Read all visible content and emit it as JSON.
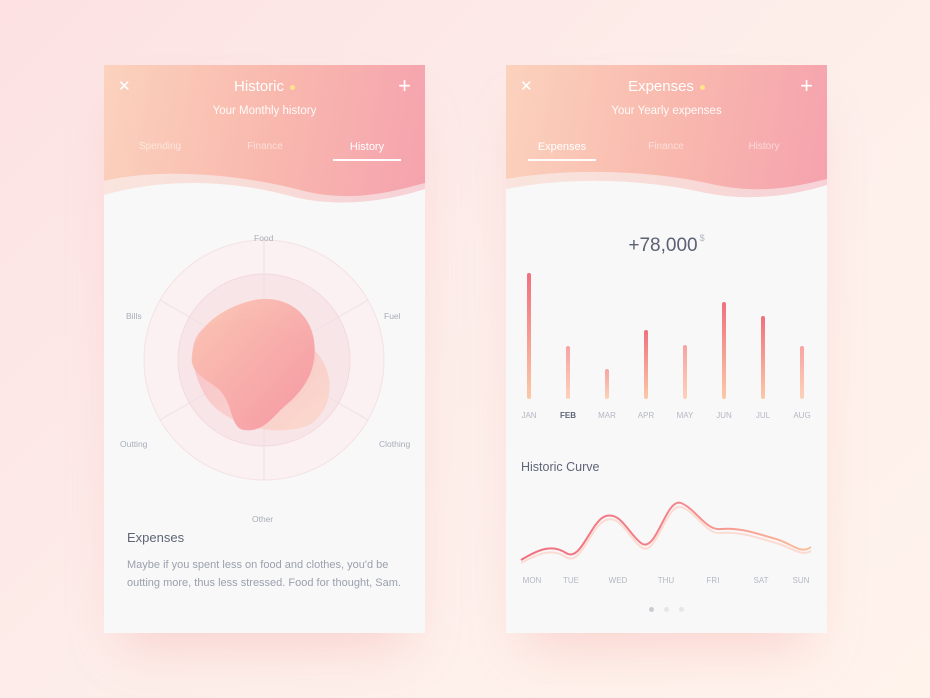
{
  "left_card": {
    "title": "Historic",
    "subtitle": "Your Monthly history",
    "tabs": [
      {
        "label": "Spending",
        "active": false
      },
      {
        "label": "Finance",
        "active": false
      },
      {
        "label": "History",
        "active": true
      }
    ],
    "radar_labels": [
      "Food",
      "Fuel",
      "Clothing",
      "Other",
      "Outting",
      "Bills"
    ],
    "expenses_title": "Expenses",
    "expenses_text": "Maybe if you spent less on food and clothes, you'd be outting more, thus less stressed. Food for thought, Sam."
  },
  "right_card": {
    "title": "Expenses",
    "subtitle": "Your Yearly expenses",
    "tabs": [
      {
        "label": "Expenses",
        "active": true
      },
      {
        "label": "Finance",
        "active": false
      },
      {
        "label": "History",
        "active": false
      }
    ],
    "total_value": "+78,000",
    "total_currency": "$",
    "bar_chart": {
      "type": "bar",
      "categories": [
        "JAN",
        "FEB",
        "MAR",
        "APR",
        "MAY",
        "JUN",
        "JUL",
        "AUG"
      ],
      "values": [
        100,
        42,
        24,
        55,
        43,
        77,
        66,
        42
      ],
      "highlighted": "FEB"
    },
    "curve_title": "Historic Curve",
    "curve_chart": {
      "type": "line",
      "categories": [
        "MON",
        "TUE",
        "WED",
        "THU",
        "FRI",
        "SAT",
        "SUN"
      ]
    },
    "pagination": {
      "pages": 3,
      "active": 0
    }
  },
  "colors": {
    "accent_pink": "#f0707e",
    "accent_peach": "#fbc9a8",
    "header_start": "#fbd2bd",
    "header_end": "#f5a2ae"
  }
}
